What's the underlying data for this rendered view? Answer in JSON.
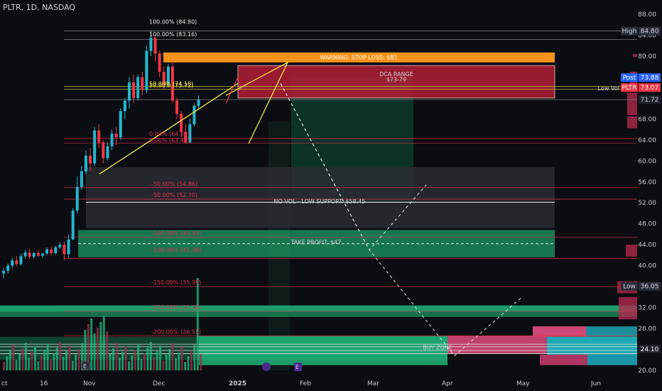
{
  "header": {
    "symbol_line": "PLTR, 1D, NASDAQ"
  },
  "chart_data": {
    "type": "candlestick",
    "ylim": [
      20,
      88
    ],
    "y_ticks": [
      "88.00",
      "84.00",
      "80.00",
      "76.00",
      "72.00",
      "68.00",
      "64.00",
      "60.00",
      "56.00",
      "52.00",
      "48.00",
      "44.00",
      "40.00",
      "36.00",
      "32.00",
      "28.00",
      "24.00",
      "20.00"
    ],
    "x_ticks": [
      "ct",
      "16",
      "Nov",
      "Dec",
      "2025",
      "Feb",
      "Mar",
      "Apr",
      "May",
      "Jun"
    ],
    "candles": [
      {
        "d": 1,
        "o": 38.5,
        "h": 39.6,
        "c": 39.0,
        "l": 37.6
      },
      {
        "d": 3,
        "o": 39.0,
        "h": 40.4,
        "c": 40.0,
        "l": 38.5
      },
      {
        "d": 5,
        "o": 40.0,
        "h": 41.5,
        "c": 41.0,
        "l": 39.5
      },
      {
        "d": 7,
        "o": 41.0,
        "h": 41.8,
        "c": 40.3,
        "l": 39.9
      },
      {
        "d": 9,
        "o": 40.3,
        "h": 42.3,
        "c": 41.8,
        "l": 40.0
      },
      {
        "d": 11,
        "o": 41.8,
        "h": 43.0,
        "c": 42.5,
        "l": 41.4
      },
      {
        "d": 13,
        "o": 42.5,
        "h": 43.2,
        "c": 41.7,
        "l": 41.3
      },
      {
        "d": 15,
        "o": 41.7,
        "h": 42.6,
        "c": 42.4,
        "l": 41.3
      },
      {
        "d": 17,
        "o": 42.4,
        "h": 43.0,
        "c": 41.9,
        "l": 41.6
      },
      {
        "d": 19,
        "o": 41.9,
        "h": 42.4,
        "c": 42.3,
        "l": 41.5
      },
      {
        "d": 21,
        "o": 42.3,
        "h": 43.5,
        "c": 43.1,
        "l": 42.0
      },
      {
        "d": 23,
        "o": 43.1,
        "h": 43.6,
        "c": 42.4,
        "l": 41.9
      },
      {
        "d": 25,
        "o": 42.4,
        "h": 43.8,
        "c": 43.5,
        "l": 42.1
      },
      {
        "d": 27,
        "o": 43.5,
        "h": 44.5,
        "c": 44.0,
        "l": 43.2
      },
      {
        "d": 29,
        "o": 44.0,
        "h": 44.6,
        "c": 42.2,
        "l": 41.0
      },
      {
        "d": 31,
        "o": 42.2,
        "h": 46.0,
        "c": 45.0,
        "l": 41.5
      },
      {
        "d": 33,
        "o": 45.0,
        "h": 51.0,
        "c": 50.5,
        "l": 44.8
      },
      {
        "d": 35,
        "o": 50.5,
        "h": 57.0,
        "c": 55.0,
        "l": 50.0
      },
      {
        "d": 37,
        "o": 55.0,
        "h": 59.0,
        "c": 58.0,
        "l": 54.5
      },
      {
        "d": 39,
        "o": 58.0,
        "h": 62.0,
        "c": 61.0,
        "l": 57.5
      },
      {
        "d": 41,
        "o": 61.0,
        "h": 62.5,
        "c": 59.5,
        "l": 58.0
      },
      {
        "d": 43,
        "o": 59.5,
        "h": 66.5,
        "c": 65.8,
        "l": 59.0
      },
      {
        "d": 45,
        "o": 65.8,
        "h": 67.0,
        "c": 63.5,
        "l": 62.5
      },
      {
        "d": 47,
        "o": 63.5,
        "h": 64.0,
        "c": 60.5,
        "l": 59.5
      },
      {
        "d": 49,
        "o": 60.5,
        "h": 63.5,
        "c": 62.8,
        "l": 60.0
      },
      {
        "d": 51,
        "o": 62.8,
        "h": 66.0,
        "c": 65.2,
        "l": 62.0
      },
      {
        "d": 53,
        "o": 65.2,
        "h": 66.5,
        "c": 64.5,
        "l": 63.0
      },
      {
        "d": 55,
        "o": 64.5,
        "h": 70.0,
        "c": 69.5,
        "l": 64.0
      },
      {
        "d": 57,
        "o": 69.5,
        "h": 72.0,
        "c": 71.5,
        "l": 68.0
      },
      {
        "d": 59,
        "o": 71.5,
        "h": 76.0,
        "c": 75.0,
        "l": 70.0
      },
      {
        "d": 61,
        "o": 75.0,
        "h": 76.5,
        "c": 72.0,
        "l": 71.0
      },
      {
        "d": 63,
        "o": 72.0,
        "h": 76.5,
        "c": 76.0,
        "l": 71.5
      },
      {
        "d": 65,
        "o": 76.0,
        "h": 77.0,
        "c": 73.5,
        "l": 72.5
      },
      {
        "d": 67,
        "o": 73.5,
        "h": 82.0,
        "c": 81.0,
        "l": 73.0
      },
      {
        "d": 69,
        "o": 81.0,
        "h": 84.8,
        "c": 83.5,
        "l": 80.0
      },
      {
        "d": 71,
        "o": 83.5,
        "h": 84.0,
        "c": 80.5,
        "l": 79.0
      },
      {
        "d": 73,
        "o": 80.5,
        "h": 81.0,
        "c": 77.0,
        "l": 76.0
      },
      {
        "d": 75,
        "o": 77.0,
        "h": 78.0,
        "c": 74.5,
        "l": 73.5
      },
      {
        "d": 77,
        "o": 74.5,
        "h": 78.5,
        "c": 78.0,
        "l": 74.0
      },
      {
        "d": 79,
        "o": 78.0,
        "h": 79.0,
        "c": 71.5,
        "l": 71.0
      },
      {
        "d": 81,
        "o": 71.5,
        "h": 72.0,
        "c": 69.0,
        "l": 68.0
      },
      {
        "d": 83,
        "o": 69.0,
        "h": 69.5,
        "c": 65.5,
        "l": 64.5
      },
      {
        "d": 85,
        "o": 65.5,
        "h": 67.0,
        "c": 63.5,
        "l": 63.3
      },
      {
        "d": 87,
        "o": 63.5,
        "h": 68.0,
        "c": 67.0,
        "l": 63.4
      },
      {
        "d": 89,
        "o": 67.0,
        "h": 71.0,
        "c": 70.5,
        "l": 66.5
      },
      {
        "d": 91,
        "o": 70.5,
        "h": 72.5,
        "c": 71.7,
        "l": 70.0
      }
    ],
    "fib_labels": [
      {
        "text": "100.00% (84.80)",
        "y": 86.6,
        "c": "#e6e6e6"
      },
      {
        "text": "100.00% (83.16)",
        "y": 84.2,
        "c": "#e6e6e6"
      },
      {
        "text": "50.00% (74.18)",
        "y": 74.8,
        "c": "#f5e74a"
      },
      {
        "text": "50.00% (73.72)",
        "y": 74.4,
        "c": "#f5e74a"
      },
      {
        "text": "0.00% (64.29)",
        "y": 65.2,
        "c": "#e0314f"
      },
      {
        "text": "0.00% (63.40)",
        "y": 64.0,
        "c": "#e0314f"
      },
      {
        "text": "-50.00% (54.86)",
        "y": 55.6,
        "c": "#e0314f"
      },
      {
        "text": "-50.00% (52.70)",
        "y": 53.5,
        "c": "#e0314f"
      },
      {
        "text": "-100.00% (45.43)",
        "y": 46.2,
        "c": "#e0314f"
      },
      {
        "text": "-100.00% (41.38)",
        "y": 43.0,
        "c": "#e0314f"
      },
      {
        "text": "-150.00% (35.99)",
        "y": 36.8,
        "c": "#e0314f"
      },
      {
        "text": "-150.00% (31.30)",
        "y": 32.1,
        "c": "#e0314f"
      },
      {
        "text": "-200.00% (26.55)",
        "y": 27.4,
        "c": "#e0314f"
      }
    ],
    "annotations": {
      "stop_loss": "WARNING: STOP LOSS: $81",
      "dca_title": "DCA RANGE",
      "dca_range": "$73-79",
      "no_vol": "NO VOL - LOW SUPPORT: $58.45",
      "take_profit": "TAKE PROFIT: $47",
      "buy_zone": "BUY ZONE"
    },
    "price_tags": {
      "high_label": "High",
      "high_value": "84.80",
      "post_label": "Post",
      "post_value": "73.88",
      "symbol_label": "PLTR",
      "last_value": "73.07",
      "low_vol_label": "Low Vol",
      "low_vol_value": "71.72",
      "low_label": "Low",
      "low_value": "36.05",
      "cursor_value": "24.10"
    },
    "colors": {
      "up": "#22b8cf",
      "down": "#f23645",
      "fib_red": "#e0314f",
      "zone_green": "#26a269",
      "orange": "#f7931a"
    }
  }
}
